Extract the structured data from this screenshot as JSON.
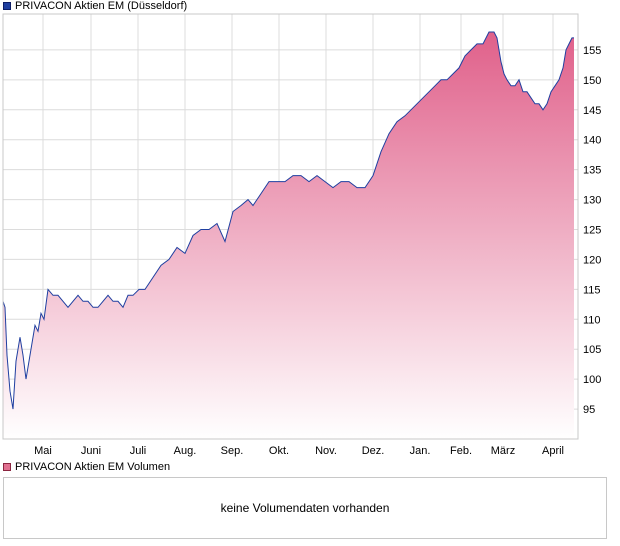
{
  "legend": {
    "price_series": "PRIVACON Aktien EM (Düsseldorf)",
    "volume_series": "PRIVACON Aktien EM Volumen"
  },
  "volume_panel": {
    "message": "keine Volumendaten vorhanden"
  },
  "colors": {
    "line": "#1f3fa0",
    "area_top": "#e0608a",
    "area_bottom": "#ffffff",
    "grid": "#dcdcdc"
  },
  "chart_data": {
    "type": "area",
    "title": "",
    "xlabel": "",
    "ylabel": "",
    "series": [
      {
        "name": "PRIVACON Aktien EM (Düsseldorf)",
        "x": [
          0,
          2,
          4,
          7,
          10,
          13,
          17,
          20,
          23,
          26,
          29,
          32,
          35,
          38,
          41,
          45,
          50,
          55,
          60,
          65,
          70,
          75,
          80,
          85,
          90,
          95,
          100,
          105,
          110,
          115,
          120,
          125,
          130,
          136,
          142,
          150,
          158,
          166,
          174,
          182,
          190,
          198,
          206,
          214,
          222,
          230,
          238,
          245,
          250,
          258,
          266,
          274,
          282,
          290,
          298,
          306,
          314,
          322,
          330,
          338,
          346,
          354,
          362,
          370,
          378,
          386,
          394,
          402,
          408,
          414,
          420,
          426,
          432,
          438,
          444,
          450,
          456,
          462,
          468,
          474,
          480,
          486,
          491,
          494,
          496,
          498,
          501,
          504,
          508,
          512,
          516,
          520,
          524,
          528,
          532,
          536,
          540,
          544,
          548,
          552,
          556,
          560,
          563,
          566,
          569,
          571
        ],
        "values": [
          113,
          112,
          104,
          98,
          95,
          103,
          107,
          104,
          100,
          103,
          106,
          109,
          108,
          111,
          110,
          115,
          114,
          114,
          113,
          112,
          113,
          114,
          113,
          113,
          112,
          112,
          113,
          114,
          113,
          113,
          112,
          114,
          114,
          115,
          115,
          117,
          119,
          120,
          122,
          121,
          124,
          125,
          125,
          126,
          123,
          128,
          129,
          130,
          129,
          131,
          133,
          133,
          133,
          134,
          134,
          133,
          134,
          133,
          132,
          133,
          133,
          132,
          132,
          134,
          138,
          141,
          143,
          144,
          145,
          146,
          147,
          148,
          149,
          150,
          150,
          151,
          152,
          154,
          155,
          156,
          156,
          158,
          158,
          157,
          155,
          153,
          151,
          150,
          149,
          149,
          150,
          148,
          148,
          147,
          146,
          146,
          145,
          146,
          148,
          149,
          150,
          152,
          155,
          156,
          157,
          157
        ]
      }
    ],
    "x_ticks": [
      {
        "label": "Mai",
        "x": 40
      },
      {
        "label": "Juni",
        "x": 88
      },
      {
        "label": "Juli",
        "x": 135
      },
      {
        "label": "Aug.",
        "x": 182
      },
      {
        "label": "Sep.",
        "x": 229
      },
      {
        "label": "Okt.",
        "x": 276
      },
      {
        "label": "Nov.",
        "x": 323
      },
      {
        "label": "Dez.",
        "x": 370
      },
      {
        "label": "Jan.",
        "x": 417
      },
      {
        "label": "Feb.",
        "x": 458
      },
      {
        "label": "März",
        "x": 500
      },
      {
        "label": "April",
        "x": 550
      }
    ],
    "y_ticks": [
      95,
      100,
      105,
      110,
      115,
      120,
      125,
      130,
      135,
      140,
      145,
      150,
      155
    ],
    "xlim": [
      0,
      575
    ],
    "ylim": [
      90,
      161
    ],
    "grid": true,
    "legend_position": "top-left"
  }
}
